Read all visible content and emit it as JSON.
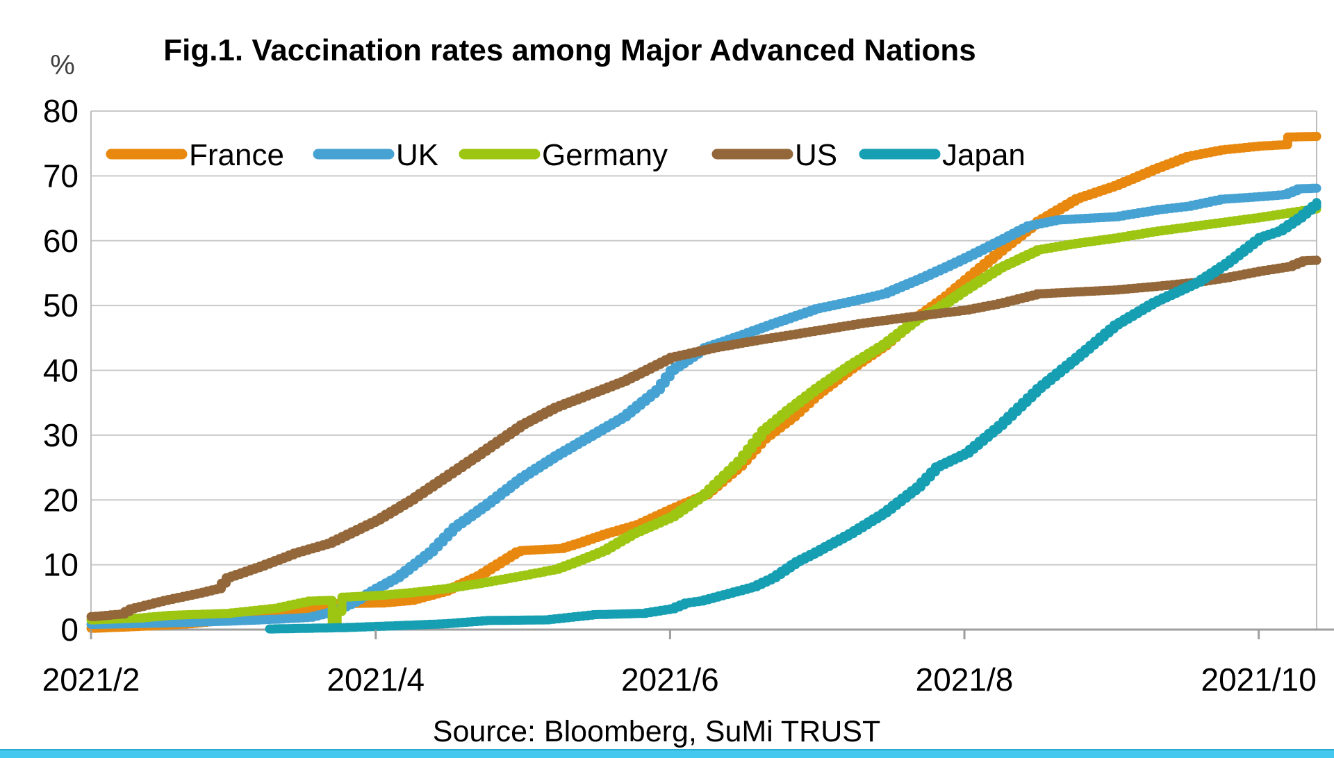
{
  "title": "Fig.1. Vaccination rates among Major Advanced Nations",
  "unit_label": "%",
  "source": "Source: Bloomberg, SuMi TRUST",
  "colors": {
    "grid": "#C9C9C9",
    "frame": "#BDBDBD",
    "axis": "#9E9E9E",
    "footer_bar": "#45C8EF",
    "france": "#E8880F",
    "uk": "#46A2D2",
    "germany": "#9DC613",
    "us": "#936739",
    "japan": "#169FB2"
  },
  "chart_data": {
    "type": "line",
    "title": "Fig.1. Vaccination rates among Major Advanced Nations",
    "ylabel": "%",
    "ylim": [
      0,
      80
    ],
    "y_ticks": [
      0,
      10,
      20,
      30,
      40,
      50,
      60,
      70,
      80
    ],
    "grid": true,
    "legend_position": "top-inside",
    "x_unit": "days since 2021-02-01",
    "x_range_days": [
      0,
      254
    ],
    "x_tick_labels": [
      "2021/2",
      "2021/4",
      "2021/6",
      "2021/8",
      "2021/10"
    ],
    "x_tick_days": [
      0,
      59,
      120,
      181,
      242
    ],
    "series": [
      {
        "name": "France",
        "color": "#E8880F",
        "points": [
          [
            0,
            0.2
          ],
          [
            10,
            0.5
          ],
          [
            20,
            0.9
          ],
          [
            28,
            1.5
          ],
          [
            38,
            2.3
          ],
          [
            46,
            3.1
          ],
          [
            51,
            4
          ],
          [
            60,
            4.1
          ],
          [
            66,
            4.5
          ],
          [
            73,
            5.9
          ],
          [
            80,
            8.3
          ],
          [
            88,
            12
          ],
          [
            89,
            12.2
          ],
          [
            97,
            12.5
          ],
          [
            101,
            13.4
          ],
          [
            106,
            14.7
          ],
          [
            113,
            16.2
          ],
          [
            120,
            18.6
          ],
          [
            127,
            20.8
          ],
          [
            134,
            25.2
          ],
          [
            139,
            29.4
          ],
          [
            145,
            32.8
          ],
          [
            150,
            36.2
          ],
          [
            157,
            40.2
          ],
          [
            164,
            43.8
          ],
          [
            172,
            48.8
          ],
          [
            177,
            51.5
          ],
          [
            181,
            54
          ],
          [
            189,
            59
          ],
          [
            196,
            63
          ],
          [
            204,
            66.5
          ],
          [
            212,
            68.5
          ],
          [
            220,
            71
          ],
          [
            227,
            73
          ],
          [
            234,
            74
          ],
          [
            242,
            74.6
          ],
          [
            247,
            74.8
          ],
          [
            248,
            76
          ],
          [
            254,
            76.1
          ]
        ]
      },
      {
        "name": "UK",
        "color": "#46A2D2",
        "points": [
          [
            0,
            0.8
          ],
          [
            14,
            1
          ],
          [
            28,
            1.3
          ],
          [
            38,
            1.6
          ],
          [
            45,
            1.9
          ],
          [
            50,
            2.8
          ],
          [
            54,
            4.2
          ],
          [
            59,
            6.4
          ],
          [
            63,
            8
          ],
          [
            70,
            12
          ],
          [
            75,
            15.8
          ],
          [
            82,
            19.5
          ],
          [
            89,
            23.5
          ],
          [
            96,
            26.8
          ],
          [
            103,
            29.8
          ],
          [
            110,
            32.8
          ],
          [
            117,
            37
          ],
          [
            120,
            40
          ],
          [
            124,
            42
          ],
          [
            127,
            43.5
          ],
          [
            134,
            45.3
          ],
          [
            141,
            47.2
          ],
          [
            150,
            49.5
          ],
          [
            157,
            50.6
          ],
          [
            164,
            51.8
          ],
          [
            171,
            54
          ],
          [
            177,
            56
          ],
          [
            181,
            57.4
          ],
          [
            188,
            60
          ],
          [
            194,
            62.3
          ],
          [
            200,
            63.2
          ],
          [
            212,
            63.7
          ],
          [
            221,
            64.8
          ],
          [
            227,
            65.3
          ],
          [
            234,
            66.4
          ],
          [
            242,
            66.8
          ],
          [
            247,
            67.1
          ],
          [
            250,
            68
          ],
          [
            254,
            68.1
          ]
        ]
      },
      {
        "name": "Germany",
        "color": "#9DC613",
        "points": [
          [
            0,
            1.5
          ],
          [
            10,
            1.8
          ],
          [
            16,
            2.2
          ],
          [
            28,
            2.5
          ],
          [
            38,
            3.3
          ],
          [
            45,
            4.4
          ],
          [
            49,
            4.5
          ],
          [
            50,
            0.6
          ],
          [
            52,
            5
          ],
          [
            60,
            5.3
          ],
          [
            66,
            5.7
          ],
          [
            73,
            6.3
          ],
          [
            80,
            7.1
          ],
          [
            89,
            8.3
          ],
          [
            96,
            9.3
          ],
          [
            100,
            10.4
          ],
          [
            106,
            12.2
          ],
          [
            112,
            14.8
          ],
          [
            120,
            17.4
          ],
          [
            127,
            21
          ],
          [
            134,
            26
          ],
          [
            139,
            30.7
          ],
          [
            144,
            33.8
          ],
          [
            150,
            37.2
          ],
          [
            157,
            40.8
          ],
          [
            164,
            44
          ],
          [
            171,
            48
          ],
          [
            175,
            49.5
          ],
          [
            181,
            52.5
          ],
          [
            188,
            55.8
          ],
          [
            196,
            58.6
          ],
          [
            204,
            59.6
          ],
          [
            212,
            60.4
          ],
          [
            220,
            61.4
          ],
          [
            227,
            62.1
          ],
          [
            235,
            62.9
          ],
          [
            242,
            63.6
          ],
          [
            248,
            64.3
          ],
          [
            254,
            65
          ]
        ]
      },
      {
        "name": "US",
        "color": "#936739",
        "points": [
          [
            0,
            2
          ],
          [
            6,
            2.4
          ],
          [
            8,
            3.2
          ],
          [
            15,
            4.5
          ],
          [
            22,
            5.6
          ],
          [
            26,
            6.3
          ],
          [
            28,
            8
          ],
          [
            35,
            9.8
          ],
          [
            42,
            11.8
          ],
          [
            49,
            13.3
          ],
          [
            59,
            16.9
          ],
          [
            66,
            20
          ],
          [
            73,
            23.5
          ],
          [
            80,
            27
          ],
          [
            89,
            31.6
          ],
          [
            96,
            34.3
          ],
          [
            103,
            36.3
          ],
          [
            110,
            38.3
          ],
          [
            120,
            42
          ],
          [
            129,
            43.5
          ],
          [
            139,
            44.8
          ],
          [
            150,
            46.1
          ],
          [
            159,
            47.2
          ],
          [
            169,
            48.2
          ],
          [
            181,
            49.3
          ],
          [
            188,
            50.3
          ],
          [
            196,
            51.8
          ],
          [
            204,
            52.1
          ],
          [
            212,
            52.4
          ],
          [
            221,
            53
          ],
          [
            229,
            53.6
          ],
          [
            235,
            54.3
          ],
          [
            242,
            55.3
          ],
          [
            248,
            56
          ],
          [
            251,
            56.9
          ],
          [
            254,
            57
          ]
        ]
      },
      {
        "name": "Japan",
        "color": "#169FB2",
        "points": [
          [
            37,
            0.1
          ],
          [
            52,
            0.3
          ],
          [
            63,
            0.6
          ],
          [
            73,
            0.9
          ],
          [
            82,
            1.4
          ],
          [
            94,
            1.5
          ],
          [
            104,
            2.3
          ],
          [
            114,
            2.5
          ],
          [
            120,
            3.2
          ],
          [
            123,
            4.1
          ],
          [
            126,
            4.4
          ],
          [
            131,
            5.4
          ],
          [
            137,
            6.6
          ],
          [
            141,
            8
          ],
          [
            146,
            10.5
          ],
          [
            150,
            12
          ],
          [
            157,
            14.8
          ],
          [
            164,
            18
          ],
          [
            171,
            22
          ],
          [
            175,
            25.1
          ],
          [
            181,
            27.2
          ],
          [
            188,
            31.5
          ],
          [
            196,
            37.2
          ],
          [
            204,
            42
          ],
          [
            212,
            47
          ],
          [
            220,
            50.5
          ],
          [
            229,
            53.6
          ],
          [
            235,
            56.5
          ],
          [
            242,
            60.5
          ],
          [
            246,
            61.5
          ],
          [
            250,
            63.5
          ],
          [
            254,
            65.9
          ]
        ]
      }
    ]
  }
}
